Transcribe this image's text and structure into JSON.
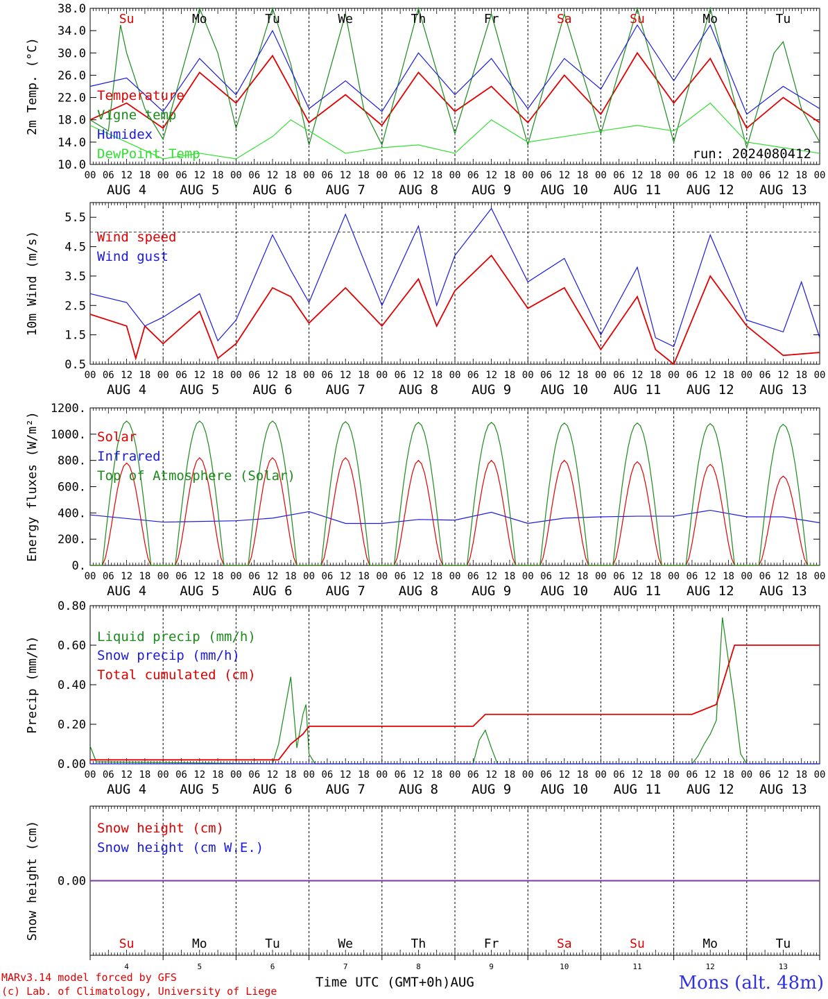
{
  "colors": {
    "red": "#e00000",
    "darkgreen": "#1a8a1a",
    "lightgreen": "#30e030",
    "blue": "#1a1ae0",
    "purple": "#7a3aa0",
    "black": "#000000"
  },
  "day_hour_labels": [
    "00",
    "06",
    "12",
    "18"
  ],
  "date_labels": [
    "AUG  4",
    "AUG  5",
    "AUG  6",
    "AUG  7",
    "AUG  8",
    "AUG  9",
    "AUG 10",
    "AUG 11",
    "AUG 12",
    "AUG 13"
  ],
  "weekdays": [
    {
      "label": "Su",
      "color": "#e00000"
    },
    {
      "label": "Mo",
      "color": "#000000"
    },
    {
      "label": "Tu",
      "color": "#000000"
    },
    {
      "label": "We",
      "color": "#000000"
    },
    {
      "label": "Th",
      "color": "#000000"
    },
    {
      "label": "Fr",
      "color": "#000000"
    },
    {
      "label": "Sa",
      "color": "#e00000"
    },
    {
      "label": "Su",
      "color": "#e00000"
    },
    {
      "label": "Mo",
      "color": "#000000"
    },
    {
      "label": "Tu",
      "color": "#000000"
    }
  ],
  "bottom_day_numbers": [
    "4",
    "5",
    "6",
    "7",
    "8",
    "9",
    "10",
    "11",
    "12",
    "13"
  ],
  "x_axis_title": "Time UTC (GMT+0h)",
  "month_label": "AUG",
  "credit_line1": "MARv3.14 model forced by GFS",
  "credit_line2": "(c) Lab. of Climatology, University of Liege",
  "site_label": "Mons (alt. 48m)",
  "chart_data": [
    {
      "type": "line",
      "ylabel": "2m Temp. (°C)",
      "ylim": [
        10,
        38
      ],
      "yticks": [
        "10.0",
        "14.0",
        "18.0",
        "22.0",
        "26.0",
        "30.0",
        "34.0",
        "38.0"
      ],
      "annotation": "run: 2024080412",
      "x_hours_range": [
        0,
        240
      ],
      "series": [
        {
          "name": "Temperature",
          "color": "#e00000",
          "points": [
            [
              0,
              18
            ],
            [
              12,
              21
            ],
            [
              24,
              16.5
            ],
            [
              36,
              26.5
            ],
            [
              48,
              21
            ],
            [
              60,
              29.5
            ],
            [
              72,
              17.5
            ],
            [
              84,
              22.5
            ],
            [
              96,
              17
            ],
            [
              108,
              26.5
            ],
            [
              120,
              19.5
            ],
            [
              132,
              24
            ],
            [
              144,
              17.5
            ],
            [
              156,
              26
            ],
            [
              168,
              19
            ],
            [
              180,
              30
            ],
            [
              192,
              21
            ],
            [
              204,
              29
            ],
            [
              216,
              16.5
            ],
            [
              228,
              22
            ],
            [
              240,
              17.5
            ]
          ]
        },
        {
          "name": "Vigne temp",
          "color": "#1a8a1a",
          "points": [
            [
              0,
              18
            ],
            [
              6,
              16
            ],
            [
              10,
              35
            ],
            [
              12,
              30
            ],
            [
              18,
              20
            ],
            [
              24,
              14.5
            ],
            [
              36,
              38
            ],
            [
              42,
              30
            ],
            [
              48,
              16.5
            ],
            [
              60,
              38
            ],
            [
              66,
              28
            ],
            [
              72,
              13.5
            ],
            [
              84,
              37
            ],
            [
              90,
              20
            ],
            [
              96,
              13.5
            ],
            [
              108,
              38
            ],
            [
              120,
              15.5
            ],
            [
              132,
              37
            ],
            [
              144,
              13.5
            ],
            [
              156,
              37
            ],
            [
              168,
              15.5
            ],
            [
              180,
              38
            ],
            [
              192,
              14
            ],
            [
              204,
              38
            ],
            [
              216,
              13
            ],
            [
              225,
              30
            ],
            [
              228,
              32
            ],
            [
              234,
              20
            ],
            [
              240,
              14
            ]
          ]
        },
        {
          "name": "Humidex",
          "color": "#1a1ae0",
          "points": [
            [
              0,
              24
            ],
            [
              12,
              25.5
            ],
            [
              24,
              19.5
            ],
            [
              36,
              29
            ],
            [
              48,
              22.5
            ],
            [
              60,
              34
            ],
            [
              72,
              20
            ],
            [
              84,
              25
            ],
            [
              96,
              19.5
            ],
            [
              108,
              30
            ],
            [
              120,
              22.5
            ],
            [
              132,
              29
            ],
            [
              144,
              20
            ],
            [
              156,
              29
            ],
            [
              168,
              23.5
            ],
            [
              180,
              35
            ],
            [
              192,
              25
            ],
            [
              204,
              35
            ],
            [
              216,
              19
            ],
            [
              228,
              24
            ],
            [
              240,
              20
            ]
          ]
        },
        {
          "name": "DewPoint Temp",
          "color": "#30e030",
          "points": [
            [
              0,
              17
            ],
            [
              12,
              14
            ],
            [
              24,
              11
            ],
            [
              36,
              12
            ],
            [
              48,
              11
            ],
            [
              60,
              15
            ],
            [
              66,
              18
            ],
            [
              72,
              16
            ],
            [
              84,
              12
            ],
            [
              96,
              13
            ],
            [
              108,
              13.5
            ],
            [
              120,
              12
            ],
            [
              132,
              18
            ],
            [
              144,
              14
            ],
            [
              156,
              15
            ],
            [
              168,
              16
            ],
            [
              180,
              17
            ],
            [
              192,
              16
            ],
            [
              204,
              21
            ],
            [
              216,
              14
            ],
            [
              228,
              13
            ],
            [
              240,
              12
            ]
          ]
        }
      ]
    },
    {
      "type": "line",
      "ylabel": "10m Wind (m/s)",
      "ylim": [
        0.5,
        6.0
      ],
      "yticks": [
        "0.5",
        "1.5",
        "2.5",
        "3.5",
        "4.5",
        "5.5"
      ],
      "reference_line": 5.0,
      "x_hours_range": [
        0,
        240
      ],
      "series": [
        {
          "name": "Wind speed",
          "color": "#e00000",
          "points": [
            [
              0,
              2.2
            ],
            [
              12,
              1.8
            ],
            [
              15,
              0.7
            ],
            [
              18,
              1.8
            ],
            [
              24,
              1.2
            ],
            [
              36,
              2.3
            ],
            [
              42,
              0.7
            ],
            [
              48,
              1.2
            ],
            [
              60,
              3.1
            ],
            [
              66,
              2.8
            ],
            [
              72,
              1.9
            ],
            [
              84,
              3.1
            ],
            [
              96,
              1.8
            ],
            [
              108,
              3.4
            ],
            [
              114,
              1.8
            ],
            [
              120,
              3
            ],
            [
              132,
              4.2
            ],
            [
              144,
              2.4
            ],
            [
              156,
              3.1
            ],
            [
              168,
              1
            ],
            [
              180,
              2.8
            ],
            [
              186,
              1
            ],
            [
              192,
              0.5
            ],
            [
              204,
              3.5
            ],
            [
              216,
              1.8
            ],
            [
              228,
              0.8
            ],
            [
              240,
              0.9
            ]
          ]
        },
        {
          "name": "Wind gust",
          "color": "#1a1ae0",
          "points": [
            [
              0,
              2.9
            ],
            [
              12,
              2.6
            ],
            [
              18,
              1.8
            ],
            [
              24,
              2.1
            ],
            [
              36,
              2.9
            ],
            [
              42,
              1.3
            ],
            [
              48,
              2
            ],
            [
              60,
              4.9
            ],
            [
              66,
              3.7
            ],
            [
              72,
              2.6
            ],
            [
              84,
              5.6
            ],
            [
              96,
              2.5
            ],
            [
              108,
              5.2
            ],
            [
              114,
              2.5
            ],
            [
              120,
              4.2
            ],
            [
              132,
              5.8
            ],
            [
              144,
              3.3
            ],
            [
              156,
              4.1
            ],
            [
              168,
              1.5
            ],
            [
              180,
              3.8
            ],
            [
              186,
              1.4
            ],
            [
              192,
              1.1
            ],
            [
              204,
              4.9
            ],
            [
              216,
              2
            ],
            [
              228,
              1.6
            ],
            [
              234,
              3.3
            ],
            [
              240,
              1.4
            ]
          ]
        }
      ]
    },
    {
      "type": "line",
      "ylabel": "Energy fluxes (W/m²)",
      "ylim": [
        0,
        1200
      ],
      "yticks": [
        "0.",
        "200.",
        "400.",
        "600.",
        "800.",
        "1000.",
        "1200."
      ],
      "x_hours_range": [
        0,
        240
      ],
      "series": [
        {
          "name": "Solar",
          "color": "#e00000",
          "peaks": [
            780,
            820,
            820,
            820,
            800,
            800,
            800,
            790,
            770,
            680
          ]
        },
        {
          "name": "Infrared",
          "color": "#1a1ae0",
          "points": [
            [
              0,
              385
            ],
            [
              24,
              330
            ],
            [
              48,
              340
            ],
            [
              60,
              360
            ],
            [
              72,
              410
            ],
            [
              84,
              320
            ],
            [
              96,
              320
            ],
            [
              108,
              350
            ],
            [
              120,
              345
            ],
            [
              132,
              405
            ],
            [
              144,
              320
            ],
            [
              156,
              360
            ],
            [
              168,
              370
            ],
            [
              180,
              375
            ],
            [
              192,
              375
            ],
            [
              204,
              420
            ],
            [
              216,
              370
            ],
            [
              228,
              370
            ],
            [
              240,
              325
            ]
          ]
        },
        {
          "name": "Top of Atmosphere (Solar)",
          "color": "#1a8a1a",
          "peaks": [
            1100,
            1100,
            1100,
            1095,
            1090,
            1090,
            1085,
            1085,
            1080,
            1075
          ]
        }
      ]
    },
    {
      "type": "line",
      "ylabel": "Precip (mm/h)",
      "ylim": [
        0,
        0.8
      ],
      "yticks": [
        "0.00",
        "0.20",
        "0.40",
        "0.60",
        "0.80"
      ],
      "x_hours_range": [
        0,
        240
      ],
      "series": [
        {
          "name": "Liquid precip (mm/h)",
          "color": "#1a8a1a",
          "points": [
            [
              0,
              0.09
            ],
            [
              2,
              0.01
            ],
            [
              60,
              0
            ],
            [
              62,
              0.1
            ],
            [
              66,
              0.44
            ],
            [
              68,
              0.08
            ],
            [
              70,
              0.25
            ],
            [
              71,
              0.3
            ],
            [
              72,
              0.05
            ],
            [
              74,
              0
            ],
            [
              126,
              0
            ],
            [
              128,
              0.12
            ],
            [
              130,
              0.17
            ],
            [
              132,
              0.08
            ],
            [
              134,
              0
            ],
            [
              198,
              0
            ],
            [
              200,
              0.04
            ],
            [
              202,
              0.1
            ],
            [
              204,
              0.15
            ],
            [
              206,
              0.22
            ],
            [
              208,
              0.74
            ],
            [
              212,
              0.3
            ],
            [
              214,
              0.05
            ],
            [
              216,
              0
            ],
            [
              240,
              0
            ]
          ]
        },
        {
          "name": "Snow precip (mm/h)",
          "color": "#1a1ae0",
          "points": [
            [
              0,
              0
            ],
            [
              240,
              0
            ]
          ]
        },
        {
          "name": "Total cumulated (cm)",
          "color": "#e00000",
          "points": [
            [
              0,
              0.02
            ],
            [
              2,
              0.02
            ],
            [
              62,
              0.02
            ],
            [
              66,
              0.1
            ],
            [
              70,
              0.15
            ],
            [
              72,
              0.19
            ],
            [
              126,
              0.19
            ],
            [
              130,
              0.25
            ],
            [
              198,
              0.25
            ],
            [
              206,
              0.3
            ],
            [
              212,
              0.6
            ],
            [
              240,
              0.6
            ]
          ]
        }
      ]
    },
    {
      "type": "line",
      "ylabel": "Snow height (cm)",
      "yticks": [
        "0.00"
      ],
      "x_hours_range": [
        0,
        240
      ],
      "series": [
        {
          "name": "Snow height (cm)",
          "color": "#e00000",
          "points": [
            [
              0,
              0
            ],
            [
              240,
              0
            ]
          ]
        },
        {
          "name": "Snow height (cm W.E.)",
          "color": "#1a1ae0",
          "points": [
            [
              0,
              0
            ],
            [
              240,
              0
            ]
          ]
        }
      ]
    }
  ]
}
